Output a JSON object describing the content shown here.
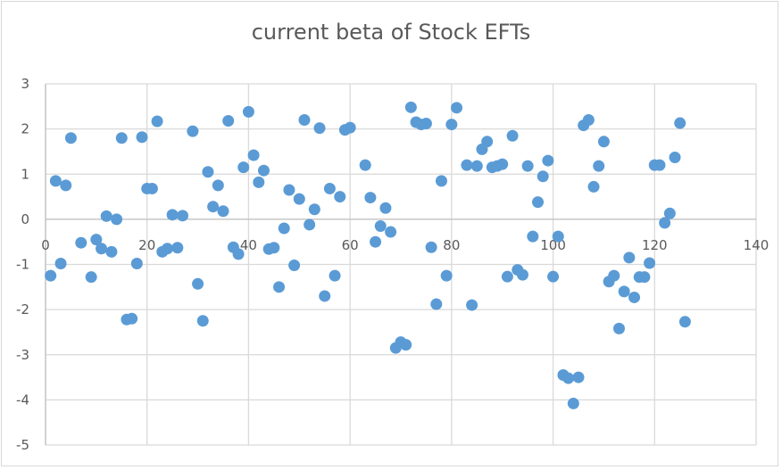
{
  "chart_data": {
    "type": "scatter",
    "title": "current beta of Stock EFTs",
    "xlabel": "",
    "ylabel": "",
    "xlim": [
      0,
      140
    ],
    "ylim": [
      -5,
      3
    ],
    "x_ticks": [
      0,
      20,
      40,
      60,
      80,
      100,
      120,
      140
    ],
    "y_ticks": [
      3,
      2,
      1,
      0,
      -1,
      -2,
      -3,
      -4,
      -5
    ],
    "grid": true,
    "legend": null,
    "marker_color": "#5B9BD5",
    "series": [
      {
        "name": "beta",
        "points": [
          [
            1,
            -1.25
          ],
          [
            2,
            0.85
          ],
          [
            3,
            -0.98
          ],
          [
            4,
            0.75
          ],
          [
            5,
            1.8
          ],
          [
            7,
            -0.52
          ],
          [
            9,
            -1.28
          ],
          [
            10,
            -0.45
          ],
          [
            11,
            -0.65
          ],
          [
            12,
            0.07
          ],
          [
            13,
            -0.72
          ],
          [
            14,
            0.0
          ],
          [
            15,
            1.8
          ],
          [
            16,
            -2.22
          ],
          [
            17,
            -2.2
          ],
          [
            18,
            -0.98
          ],
          [
            19,
            1.82
          ],
          [
            20,
            0.68
          ],
          [
            21,
            0.68
          ],
          [
            22,
            2.17
          ],
          [
            23,
            -0.72
          ],
          [
            24,
            -0.65
          ],
          [
            25,
            0.1
          ],
          [
            26,
            -0.63
          ],
          [
            27,
            0.08
          ],
          [
            29,
            1.95
          ],
          [
            30,
            -1.43
          ],
          [
            31,
            -2.25
          ],
          [
            32,
            1.05
          ],
          [
            33,
            0.28
          ],
          [
            34,
            0.75
          ],
          [
            35,
            0.18
          ],
          [
            36,
            2.18
          ],
          [
            37,
            -0.62
          ],
          [
            38,
            -0.77
          ],
          [
            39,
            1.15
          ],
          [
            40,
            2.38
          ],
          [
            41,
            1.42
          ],
          [
            42,
            0.82
          ],
          [
            43,
            1.08
          ],
          [
            44,
            -0.66
          ],
          [
            45,
            -0.63
          ],
          [
            46,
            -1.5
          ],
          [
            47,
            -0.2
          ],
          [
            48,
            0.65
          ],
          [
            49,
            -1.02
          ],
          [
            50,
            0.45
          ],
          [
            51,
            2.2
          ],
          [
            52,
            -0.12
          ],
          [
            53,
            0.22
          ],
          [
            54,
            2.02
          ],
          [
            55,
            -1.7
          ],
          [
            56,
            0.68
          ],
          [
            57,
            -1.25
          ],
          [
            58,
            0.5
          ],
          [
            59,
            1.98
          ],
          [
            60,
            2.03
          ],
          [
            63,
            1.2
          ],
          [
            64,
            0.48
          ],
          [
            65,
            -0.5
          ],
          [
            66,
            -0.15
          ],
          [
            67,
            0.25
          ],
          [
            68,
            -0.28
          ],
          [
            69,
            -2.85
          ],
          [
            70,
            -2.72
          ],
          [
            71,
            -2.78
          ],
          [
            72,
            2.48
          ],
          [
            73,
            2.15
          ],
          [
            74,
            2.1
          ],
          [
            75,
            2.12
          ],
          [
            76,
            -0.62
          ],
          [
            77,
            -1.88
          ],
          [
            78,
            0.85
          ],
          [
            79,
            -1.25
          ],
          [
            80,
            2.1
          ],
          [
            81,
            2.47
          ],
          [
            83,
            1.2
          ],
          [
            84,
            -1.9
          ],
          [
            85,
            1.18
          ],
          [
            86,
            1.55
          ],
          [
            87,
            1.72
          ],
          [
            88,
            1.15
          ],
          [
            89,
            1.18
          ],
          [
            90,
            1.22
          ],
          [
            91,
            -1.27
          ],
          [
            92,
            1.85
          ],
          [
            93,
            -1.12
          ],
          [
            94,
            -1.23
          ],
          [
            95,
            1.18
          ],
          [
            96,
            -0.38
          ],
          [
            97,
            0.38
          ],
          [
            98,
            0.95
          ],
          [
            99,
            1.3
          ],
          [
            100,
            -1.27
          ],
          [
            101,
            -0.38
          ],
          [
            102,
            -3.45
          ],
          [
            103,
            -3.52
          ],
          [
            104,
            -4.08
          ],
          [
            105,
            -3.5
          ],
          [
            106,
            2.08
          ],
          [
            107,
            2.2
          ],
          [
            108,
            0.72
          ],
          [
            109,
            1.18
          ],
          [
            110,
            1.72
          ],
          [
            111,
            -1.38
          ],
          [
            112,
            -1.25
          ],
          [
            113,
            -2.42
          ],
          [
            114,
            -1.6
          ],
          [
            115,
            -0.85
          ],
          [
            116,
            -1.73
          ],
          [
            117,
            -1.28
          ],
          [
            118,
            -1.28
          ],
          [
            119,
            -0.97
          ],
          [
            120,
            1.2
          ],
          [
            121,
            1.2
          ],
          [
            122,
            -0.08
          ],
          [
            123,
            0.13
          ],
          [
            124,
            1.37
          ],
          [
            125,
            2.13
          ],
          [
            126,
            -2.27
          ]
        ]
      }
    ]
  }
}
